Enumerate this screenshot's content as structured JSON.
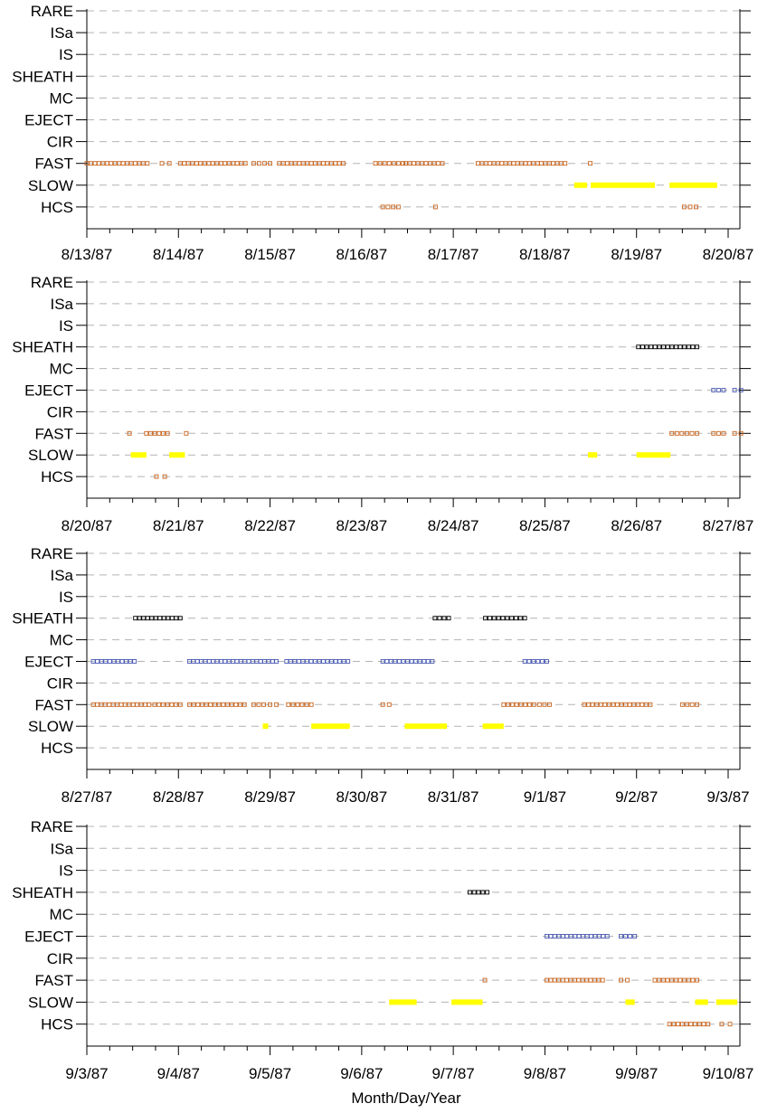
{
  "xlabel": "Month/Day/Year",
  "categories": [
    "RARE",
    "ISa",
    "IS",
    "SHEATH",
    "MC",
    "EJECT",
    "CIR",
    "FAST",
    "SLOW",
    "HCS"
  ],
  "colors": {
    "fast": "#c0504d",
    "fast_stroke": "#c8641e",
    "hcs": "#c8641e",
    "slow": "#ffff00",
    "sheath": "#000000",
    "eject": "#4a5ab4",
    "grid": "#b4b4b4"
  },
  "chart_data": [
    {
      "type": "event-timeline",
      "x_tick_labels": [
        "8/13/87",
        "8/14/87",
        "8/15/87",
        "8/16/87",
        "8/17/87",
        "8/18/87",
        "8/19/87",
        "8/20/87"
      ],
      "grid": "dashed horizontal",
      "series": [
        {
          "category": "FAST",
          "style": "squares",
          "intervals": [
            [
              0.0,
              0.66
            ],
            [
              0.82,
              0.9
            ],
            [
              1.02,
              1.73
            ],
            [
              1.82,
              2.0
            ],
            [
              2.1,
              2.8
            ],
            [
              3.15,
              3.45
            ],
            [
              3.48,
              3.88
            ],
            [
              4.27,
              5.22
            ],
            [
              5.47,
              5.52
            ]
          ]
        },
        {
          "category": "SLOW",
          "style": "bar",
          "intervals": [
            [
              5.32,
              5.46
            ],
            [
              5.5,
              6.2
            ],
            [
              6.36,
              6.88
            ]
          ]
        },
        {
          "category": "HCS",
          "style": "squares",
          "intervals": [
            [
              3.23,
              3.4
            ],
            [
              3.78,
              3.83
            ],
            [
              6.52,
              6.65
            ]
          ]
        }
      ]
    },
    {
      "type": "event-timeline",
      "x_tick_labels": [
        "8/20/87",
        "8/21/87",
        "8/22/87",
        "8/23/87",
        "8/24/87",
        "8/25/87",
        "8/26/87",
        "8/27/87"
      ],
      "grid": "dashed horizontal",
      "series": [
        {
          "category": "SHEATH",
          "style": "squares",
          "intervals": [
            [
              6.02,
              6.66
            ]
          ]
        },
        {
          "category": "EJECT",
          "style": "squares",
          "intervals": [
            [
              6.84,
              6.95
            ],
            [
              7.07,
              7.14
            ]
          ]
        },
        {
          "category": "FAST",
          "style": "squares",
          "intervals": [
            [
              0.45,
              0.48
            ],
            [
              0.65,
              0.88
            ],
            [
              1.07,
              1.1
            ],
            [
              6.37,
              6.4
            ],
            [
              6.44,
              6.66
            ],
            [
              6.84,
              6.95
            ],
            [
              7.07,
              7.14
            ]
          ]
        },
        {
          "category": "SLOW",
          "style": "bar",
          "intervals": [
            [
              0.48,
              0.65
            ],
            [
              0.9,
              1.07
            ],
            [
              5.47,
              5.57
            ],
            [
              6.0,
              6.37
            ]
          ]
        },
        {
          "category": "HCS",
          "style": "squares",
          "intervals": [
            [
              0.76,
              0.85
            ]
          ]
        }
      ]
    },
    {
      "type": "event-timeline",
      "x_tick_labels": [
        "8/27/87",
        "8/28/87",
        "8/29/87",
        "8/30/87",
        "8/31/87",
        "9/1/87",
        "9/2/87",
        "9/3/87"
      ],
      "grid": "dashed horizontal",
      "series": [
        {
          "category": "SHEATH",
          "style": "squares",
          "intervals": [
            [
              0.53,
              1.02
            ],
            [
              3.8,
              3.95
            ],
            [
              4.35,
              4.78
            ]
          ]
        },
        {
          "category": "EJECT",
          "style": "squares",
          "intervals": [
            [
              0.07,
              0.52
            ],
            [
              1.12,
              2.07
            ],
            [
              2.18,
              2.85
            ],
            [
              3.23,
              3.77
            ],
            [
              4.78,
              5.02
            ]
          ]
        },
        {
          "category": "FAST",
          "style": "squares",
          "intervals": [
            [
              0.07,
              0.68
            ],
            [
              0.74,
              1.02
            ],
            [
              1.12,
              1.72
            ],
            [
              1.82,
              1.93
            ],
            [
              2.0,
              2.07
            ],
            [
              2.2,
              2.45
            ],
            [
              3.23,
              3.3
            ],
            [
              4.55,
              4.88
            ],
            [
              4.94,
              5.05
            ],
            [
              5.43,
              6.15
            ],
            [
              6.5,
              6.66
            ]
          ]
        },
        {
          "category": "SLOW",
          "style": "bar",
          "intervals": [
            [
              1.92,
              1.98
            ],
            [
              2.45,
              2.87
            ],
            [
              3.47,
              3.93
            ],
            [
              4.32,
              4.55
            ]
          ]
        }
      ]
    },
    {
      "type": "event-timeline",
      "x_tick_labels": [
        "9/3/87",
        "9/4/87",
        "9/5/87",
        "9/6/87",
        "9/7/87",
        "9/8/87",
        "9/9/87",
        "9/10/87"
      ],
      "grid": "dashed horizontal",
      "series": [
        {
          "category": "SHEATH",
          "style": "squares",
          "intervals": [
            [
              4.18,
              4.37
            ]
          ]
        },
        {
          "category": "EJECT",
          "style": "squares",
          "intervals": [
            [
              5.02,
              5.68
            ],
            [
              5.83,
              5.98
            ]
          ]
        },
        {
          "category": "FAST",
          "style": "squares",
          "intervals": [
            [
              4.32,
              4.37
            ],
            [
              5.02,
              5.63
            ],
            [
              5.83,
              5.9
            ],
            [
              6.2,
              6.66
            ]
          ]
        },
        {
          "category": "SLOW",
          "style": "bar",
          "intervals": [
            [
              3.3,
              3.6
            ],
            [
              3.98,
              4.32
            ],
            [
              5.88,
              5.98
            ],
            [
              6.64,
              6.78
            ],
            [
              6.87,
              7.1
            ]
          ]
        },
        {
          "category": "HCS",
          "style": "squares",
          "intervals": [
            [
              6.36,
              6.78
            ],
            [
              6.93,
              7.02
            ]
          ]
        }
      ]
    }
  ]
}
